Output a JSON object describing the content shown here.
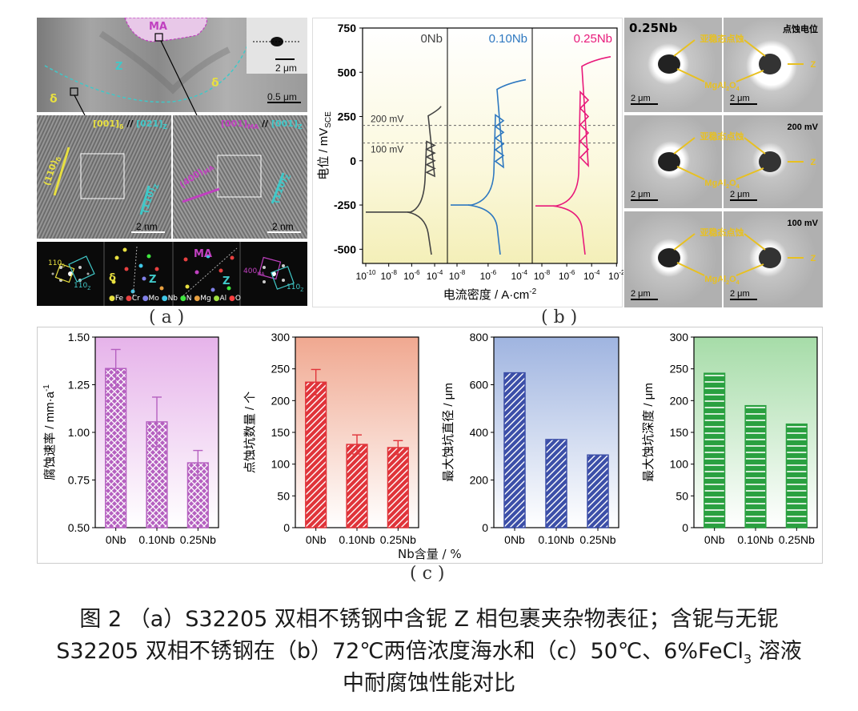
{
  "panel_a": {
    "label": "( a )",
    "top": {
      "ma": "MA",
      "z": "Z",
      "delta_left": "δ",
      "delta_right": "δ",
      "scale_inset": "2 μm",
      "scale_main": "0.5 μm"
    },
    "hr_left": {
      "zone_title_a": "[001]",
      "zone_title_a_sub": "δ",
      "zone_title_sep": " // ",
      "zone_title_b": "[021]",
      "zone_title_b_sub": "Z",
      "plane_a": "(110)",
      "plane_a_sub": "δ",
      "plane_b": "(110)",
      "plane_b_sub": "Z",
      "scale": "2 nm"
    },
    "hr_right": {
      "zone_title_a": "[001]",
      "zone_title_a_sub": "MA",
      "zone_title_sep": " // ",
      "zone_title_b": "[001]",
      "zone_title_b_sub": "Z",
      "plane_a": "(400)",
      "plane_a_sub": "MA",
      "plane_b": "(110)",
      "plane_b_sub": "Z",
      "scale": "2 nm"
    },
    "fft_left": {
      "spot1": "110",
      "spot1_sub": "δ",
      "spot2": "110",
      "spot2_sub": "Z"
    },
    "fft_right": {
      "spot1": "400",
      "spot1_sub": "MA",
      "spot2": "110",
      "spot2_sub": "Z"
    },
    "atom_model": {
      "delta": "δ",
      "z": "Z",
      "ma": "MA",
      "z2": "Z"
    },
    "legend": [
      "Fe",
      "Cr",
      "Mo",
      "Nb",
      "N",
      "Mg",
      "Al",
      "O"
    ]
  },
  "panel_b": {
    "label": "( b )",
    "chart_data": {
      "type": "line",
      "ylabel": "电位 / mV",
      "ylabel_sub": "SCE",
      "xlabel": "电流密度 / A·cm",
      "xlabel_sup": "-2",
      "ylim": [
        -580,
        750
      ],
      "yticks": [
        "750",
        "500",
        "250",
        "0",
        "-250",
        "-500"
      ],
      "ytick_values": [
        750,
        500,
        250,
        0,
        -250,
        -500
      ],
      "xticks": [
        [
          "10-10",
          "10-8",
          "10-6",
          "10-4"
        ],
        [
          "10-8",
          "10-6",
          "10-4"
        ],
        [
          "10-8",
          "10-6",
          "10-4",
          "10-2"
        ]
      ],
      "ref_lines": [
        {
          "value": 200,
          "label": "200 mV"
        },
        {
          "value": 100,
          "label": "100 mV"
        }
      ],
      "series": [
        {
          "name": "0Nb",
          "color": "#444444",
          "corrosion_potential": -290,
          "pitting_potential": 290
        },
        {
          "name": "0.10Nb",
          "color": "#2e78c0",
          "corrosion_potential": -250,
          "pitting_potential": 440
        },
        {
          "name": "0.25Nb",
          "color": "#e8197a",
          "corrosion_potential": -255,
          "pitting_potential": 570
        }
      ]
    },
    "sem": {
      "title": "0.25Nb",
      "rows": [
        {
          "potential": "点蚀电位",
          "sub": "亚稳态点蚀",
          "mgal": "MgAl",
          "mgal_sub": "2",
          "mgal_o": "O",
          "mgal_osub": "4",
          "z": "Z",
          "scale_left": "2 μm",
          "scale_right": "2 μm"
        },
        {
          "potential": "200 mV",
          "sub": "亚稳态点蚀",
          "mgal": "MgAl",
          "mgal_sub": "2",
          "mgal_o": "O",
          "mgal_osub": "4",
          "z": "Z",
          "scale_left": "2 μm",
          "scale_right": "2 μm"
        },
        {
          "potential": "100 mV",
          "sub": "亚稳态点蚀",
          "mgal": "MgAl",
          "mgal_sub": "2",
          "mgal_o": "O",
          "mgal_osub": "4",
          "z": "Z",
          "scale_left": "2 μm",
          "scale_right": "2 μm"
        }
      ]
    }
  },
  "panel_c": {
    "label": "( c )",
    "xlabel_shared": "Nb含量 / %",
    "chart_data": [
      {
        "type": "bar",
        "ylabel": "腐蚀速率 / mm·a",
        "ylabel_sup": "-1",
        "categories": [
          "0Nb",
          "0.10Nb",
          "0.25Nb"
        ],
        "values": [
          1.335,
          1.055,
          0.84
        ],
        "errors": [
          0.1,
          0.13,
          0.065
        ],
        "ylim": [
          0.5,
          1.5
        ],
        "yticks": [
          "0.50",
          "0.75",
          "1.00",
          "1.25",
          "1.50"
        ],
        "ytick_values": [
          0.5,
          0.75,
          1.0,
          1.25,
          1.5
        ],
        "color": "#b560c0",
        "bg_top": "#e6b3ea"
      },
      {
        "type": "bar",
        "ylabel": "点蚀坑数量 / 个",
        "categories": [
          "0Nb",
          "0.10Nb",
          "0.25Nb"
        ],
        "values": [
          229,
          131,
          126
        ],
        "errors": [
          20,
          15,
          11
        ],
        "ylim": [
          0,
          300
        ],
        "yticks": [
          "0",
          "50",
          "100",
          "150",
          "200",
          "250",
          "300"
        ],
        "ytick_values": [
          0,
          50,
          100,
          150,
          200,
          250,
          300
        ],
        "color": "#e0343a",
        "bg_top": "#f0a890"
      },
      {
        "type": "bar",
        "ylabel": "最大蚀坑直径 / μm",
        "categories": [
          "0Nb",
          "0.10Nb",
          "0.25Nb"
        ],
        "values": [
          650,
          370,
          305
        ],
        "errors": [],
        "ylim": [
          0,
          800
        ],
        "yticks": [
          "0",
          "200",
          "400",
          "600",
          "800"
        ],
        "ytick_values": [
          0,
          200,
          400,
          600,
          800
        ],
        "color": "#3c4fa8",
        "bg_top": "#9fb4e0"
      },
      {
        "type": "bar",
        "ylabel": "最大蚀坑深度 / μm",
        "categories": [
          "0Nb",
          "0.10Nb",
          "0.25Nb"
        ],
        "values": [
          243,
          192,
          163
        ],
        "errors": [],
        "ylim": [
          0,
          300
        ],
        "yticks": [
          "0",
          "50",
          "100",
          "150",
          "200",
          "250",
          "300"
        ],
        "ytick_values": [
          0,
          50,
          100,
          150,
          200,
          250,
          300
        ],
        "color": "#2aa040",
        "bg_top": "#a6dca8"
      }
    ]
  },
  "caption": {
    "line1": "图 2 （a）S32205 双相不锈钢中含铌 Z 相包裹夹杂物表征；含铌与无铌",
    "line2a": "S32205 双相不锈钢在（b）72℃两倍浓度海水和（c）50℃、6%FeCl",
    "line2sub": "3",
    "line2b": " 溶液",
    "line3": "中耐腐蚀性能对比"
  },
  "colors": {
    "yellow": "#e8e040",
    "cyan": "#40c8c8",
    "magenta": "#c040c0",
    "arrow": "#e8c020"
  }
}
